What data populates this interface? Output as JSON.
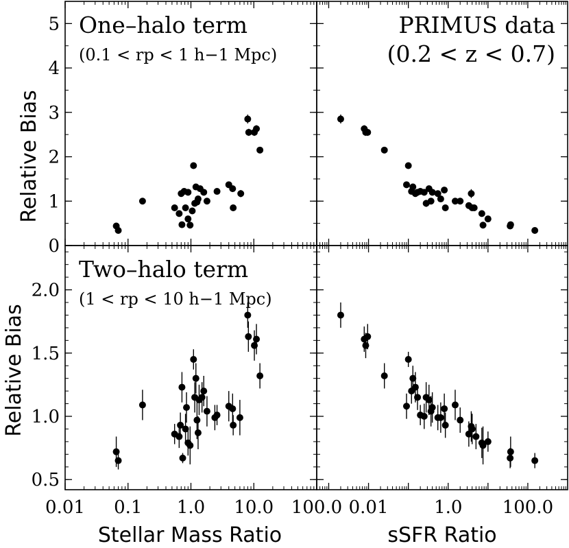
{
  "chart_data": [
    {
      "id": "one_halo_mass",
      "type": "scatter",
      "panel_text": "One–halo term",
      "panel_subtext": "(0.1 < rp < 1 h−1 Mpc)",
      "xlabel": "",
      "ylabel": "Relative Bias",
      "xscale": "log",
      "xlim": [
        0.01,
        100
      ],
      "ylim": [
        0,
        5.5
      ],
      "yticks": [
        0,
        1,
        2,
        3,
        4,
        5
      ],
      "ytick_labels": [
        "0",
        "1",
        "2",
        "3",
        "4",
        "5"
      ],
      "points": [
        {
          "x": 0.065,
          "y": 0.44,
          "err": 0.06
        },
        {
          "x": 0.07,
          "y": 0.34,
          "err": 0.06
        },
        {
          "x": 0.17,
          "y": 1.0,
          "err": 0.06
        },
        {
          "x": 0.55,
          "y": 0.85,
          "err": 0.06
        },
        {
          "x": 0.65,
          "y": 0.72,
          "err": 0.06
        },
        {
          "x": 0.7,
          "y": 1.17,
          "err": 0.06
        },
        {
          "x": 0.72,
          "y": 0.47,
          "err": 0.06
        },
        {
          "x": 0.78,
          "y": 1.22,
          "err": 0.06
        },
        {
          "x": 0.82,
          "y": 0.85,
          "err": 0.06
        },
        {
          "x": 0.9,
          "y": 1.2,
          "err": 0.06
        },
        {
          "x": 0.9,
          "y": 0.6,
          "err": 0.06
        },
        {
          "x": 0.97,
          "y": 0.46,
          "err": 0.06
        },
        {
          "x": 1.05,
          "y": 0.78,
          "err": 0.06
        },
        {
          "x": 1.1,
          "y": 1.8,
          "err": 0.06
        },
        {
          "x": 1.15,
          "y": 0.95,
          "err": 0.06
        },
        {
          "x": 1.2,
          "y": 1.32,
          "err": 0.06
        },
        {
          "x": 1.25,
          "y": 0.98,
          "err": 0.06
        },
        {
          "x": 1.3,
          "y": 1.05,
          "err": 0.06
        },
        {
          "x": 1.4,
          "y": 1.28,
          "err": 0.06
        },
        {
          "x": 1.6,
          "y": 1.2,
          "err": 0.06
        },
        {
          "x": 1.8,
          "y": 1.0,
          "err": 0.06
        },
        {
          "x": 2.6,
          "y": 1.22,
          "err": 0.06
        },
        {
          "x": 4.0,
          "y": 1.37,
          "err": 0.06
        },
        {
          "x": 4.6,
          "y": 1.28,
          "err": 0.06
        },
        {
          "x": 4.7,
          "y": 0.85,
          "err": 0.06
        },
        {
          "x": 6.2,
          "y": 1.17,
          "err": 0.08
        },
        {
          "x": 8.0,
          "y": 2.85,
          "err": 0.1
        },
        {
          "x": 8.3,
          "y": 2.55,
          "err": 0.08
        },
        {
          "x": 10.2,
          "y": 2.55,
          "err": 0.08
        },
        {
          "x": 11.0,
          "y": 2.63,
          "err": 0.08
        },
        {
          "x": 12.5,
          "y": 2.15,
          "err": 0.06
        }
      ]
    },
    {
      "id": "one_halo_ssfr",
      "type": "scatter",
      "panel_text": "PRIMUS data",
      "panel_subtext": "(0.2 < z < 0.7)",
      "xlabel": "",
      "ylabel": "",
      "xscale": "log",
      "xlim": [
        0.0005,
        1000
      ],
      "ylim": [
        0,
        5.5
      ],
      "points": [
        {
          "x": 0.002,
          "y": 2.85,
          "err": 0.1
        },
        {
          "x": 0.0078,
          "y": 2.63,
          "err": 0.08
        },
        {
          "x": 0.0085,
          "y": 2.55,
          "err": 0.08
        },
        {
          "x": 0.0095,
          "y": 2.55,
          "err": 0.08
        },
        {
          "x": 0.025,
          "y": 2.15,
          "err": 0.06
        },
        {
          "x": 0.09,
          "y": 1.37,
          "err": 0.06
        },
        {
          "x": 0.1,
          "y": 1.8,
          "err": 0.06
        },
        {
          "x": 0.12,
          "y": 1.22,
          "err": 0.06
        },
        {
          "x": 0.13,
          "y": 1.32,
          "err": 0.06
        },
        {
          "x": 0.15,
          "y": 1.17,
          "err": 0.06
        },
        {
          "x": 0.17,
          "y": 1.2,
          "err": 0.06
        },
        {
          "x": 0.2,
          "y": 1.22,
          "err": 0.06
        },
        {
          "x": 0.25,
          "y": 1.2,
          "err": 0.06
        },
        {
          "x": 0.28,
          "y": 0.95,
          "err": 0.08
        },
        {
          "x": 0.33,
          "y": 1.28,
          "err": 0.06
        },
        {
          "x": 0.37,
          "y": 1.0,
          "err": 0.06
        },
        {
          "x": 0.4,
          "y": 1.2,
          "err": 0.06
        },
        {
          "x": 0.55,
          "y": 1.17,
          "err": 0.06
        },
        {
          "x": 0.65,
          "y": 1.05,
          "err": 0.06
        },
        {
          "x": 0.8,
          "y": 1.25,
          "err": 0.06
        },
        {
          "x": 0.85,
          "y": 0.85,
          "err": 0.06
        },
        {
          "x": 1.5,
          "y": 1.0,
          "err": 0.06
        },
        {
          "x": 2.0,
          "y": 1.0,
          "err": 0.06
        },
        {
          "x": 3.3,
          "y": 0.9,
          "err": 0.06
        },
        {
          "x": 3.8,
          "y": 1.17,
          "err": 0.1
        },
        {
          "x": 4.0,
          "y": 0.85,
          "err": 0.06
        },
        {
          "x": 4.5,
          "y": 0.85,
          "err": 0.06
        },
        {
          "x": 7.0,
          "y": 0.72,
          "err": 0.06
        },
        {
          "x": 7.5,
          "y": 0.46,
          "err": 0.06
        },
        {
          "x": 10.0,
          "y": 0.6,
          "err": 0.06
        },
        {
          "x": 36.0,
          "y": 0.44,
          "err": 0.06
        },
        {
          "x": 37.0,
          "y": 0.47,
          "err": 0.06
        },
        {
          "x": 150.0,
          "y": 0.34,
          "err": 0.06
        }
      ]
    },
    {
      "id": "two_halo_mass",
      "type": "scatter",
      "panel_text": "Two–halo term",
      "panel_subtext": "(1 < rp < 10 h−1 Mpc)",
      "xlabel": "Stellar Mass Ratio",
      "ylabel": "Relative Bias",
      "xscale": "log",
      "xlim": [
        0.01,
        100
      ],
      "ylim": [
        0.42,
        2.35
      ],
      "xticks": [
        0.01,
        0.1,
        1,
        10,
        100
      ],
      "xtick_labels": [
        "0.01",
        "0.1",
        "1.0",
        "10.0",
        "100.0"
      ],
      "yticks": [
        0.5,
        1.0,
        1.5,
        2.0
      ],
      "ytick_labels": [
        "0.5",
        "1.0",
        "1.5",
        "2.0"
      ],
      "points": [
        {
          "x": 0.065,
          "y": 0.72,
          "err": 0.12
        },
        {
          "x": 0.07,
          "y": 0.65,
          "err": 0.07
        },
        {
          "x": 0.17,
          "y": 1.09,
          "err": 0.12
        },
        {
          "x": 0.55,
          "y": 0.86,
          "err": 0.08
        },
        {
          "x": 0.65,
          "y": 0.84,
          "err": 0.09
        },
        {
          "x": 0.68,
          "y": 0.93,
          "err": 0.1
        },
        {
          "x": 0.72,
          "y": 1.23,
          "err": 0.12
        },
        {
          "x": 0.74,
          "y": 0.67,
          "err": 0.04
        },
        {
          "x": 0.82,
          "y": 0.9,
          "err": 0.12
        },
        {
          "x": 0.85,
          "y": 1.07,
          "err": 0.12
        },
        {
          "x": 0.9,
          "y": 0.79,
          "err": 0.1
        },
        {
          "x": 0.97,
          "y": 0.77,
          "err": 0.15
        },
        {
          "x": 1.1,
          "y": 1.45,
          "err": 0.08
        },
        {
          "x": 1.15,
          "y": 1.15,
          "err": 0.12
        },
        {
          "x": 1.2,
          "y": 1.3,
          "err": 0.12
        },
        {
          "x": 1.25,
          "y": 0.97,
          "err": 0.15
        },
        {
          "x": 1.3,
          "y": 0.87,
          "err": 0.13
        },
        {
          "x": 1.35,
          "y": 1.13,
          "err": 0.12
        },
        {
          "x": 1.5,
          "y": 1.15,
          "err": 0.12
        },
        {
          "x": 1.6,
          "y": 1.2,
          "err": 0.12
        },
        {
          "x": 1.8,
          "y": 1.04,
          "err": 0.12
        },
        {
          "x": 2.4,
          "y": 0.99,
          "err": 0.1
        },
        {
          "x": 2.6,
          "y": 1.01,
          "err": 0.08
        },
        {
          "x": 4.0,
          "y": 1.08,
          "err": 0.12
        },
        {
          "x": 4.6,
          "y": 1.06,
          "err": 0.12
        },
        {
          "x": 4.7,
          "y": 0.93,
          "err": 0.08
        },
        {
          "x": 6.0,
          "y": 0.99,
          "err": 0.14
        },
        {
          "x": 8.0,
          "y": 1.8,
          "err": 0.1
        },
        {
          "x": 8.2,
          "y": 1.63,
          "err": 0.12
        },
        {
          "x": 10.2,
          "y": 1.56,
          "err": 0.12
        },
        {
          "x": 11.0,
          "y": 1.61,
          "err": 0.12
        },
        {
          "x": 12.5,
          "y": 1.32,
          "err": 0.1
        }
      ]
    },
    {
      "id": "two_halo_ssfr",
      "type": "scatter",
      "panel_text": "",
      "panel_subtext": "",
      "xlabel": "sSFR Ratio",
      "ylabel": "",
      "xscale": "log",
      "xlim": [
        0.0005,
        1000
      ],
      "ylim": [
        0.42,
        2.35
      ],
      "xticks": [
        0.01,
        1,
        100
      ],
      "xtick_labels": [
        "0.01",
        "1.0",
        "100.0"
      ],
      "points": [
        {
          "x": 0.002,
          "y": 1.8,
          "err": 0.1
        },
        {
          "x": 0.0078,
          "y": 1.61,
          "err": 0.1
        },
        {
          "x": 0.0085,
          "y": 1.56,
          "err": 0.1
        },
        {
          "x": 0.0095,
          "y": 1.63,
          "err": 0.1
        },
        {
          "x": 0.025,
          "y": 1.32,
          "err": 0.1
        },
        {
          "x": 0.09,
          "y": 1.08,
          "err": 0.1
        },
        {
          "x": 0.1,
          "y": 1.45,
          "err": 0.06
        },
        {
          "x": 0.12,
          "y": 1.2,
          "err": 0.1
        },
        {
          "x": 0.13,
          "y": 1.3,
          "err": 0.1
        },
        {
          "x": 0.15,
          "y": 1.23,
          "err": 0.12
        },
        {
          "x": 0.17,
          "y": 1.15,
          "err": 0.1
        },
        {
          "x": 0.2,
          "y": 1.01,
          "err": 0.08
        },
        {
          "x": 0.25,
          "y": 1.0,
          "err": 0.1
        },
        {
          "x": 0.28,
          "y": 1.15,
          "err": 0.12
        },
        {
          "x": 0.33,
          "y": 1.13,
          "err": 0.12
        },
        {
          "x": 0.37,
          "y": 1.04,
          "err": 0.12
        },
        {
          "x": 0.4,
          "y": 1.07,
          "err": 0.12
        },
        {
          "x": 0.55,
          "y": 0.99,
          "err": 0.1
        },
        {
          "x": 0.65,
          "y": 0.99,
          "err": 0.12
        },
        {
          "x": 0.8,
          "y": 1.06,
          "err": 0.12
        },
        {
          "x": 0.85,
          "y": 0.93,
          "err": 0.1
        },
        {
          "x": 1.5,
          "y": 1.09,
          "err": 0.12
        },
        {
          "x": 2.0,
          "y": 0.97,
          "err": 0.1
        },
        {
          "x": 3.3,
          "y": 0.86,
          "err": 0.1
        },
        {
          "x": 3.8,
          "y": 0.92,
          "err": 0.12
        },
        {
          "x": 4.0,
          "y": 0.9,
          "err": 0.12
        },
        {
          "x": 5.0,
          "y": 0.84,
          "err": 0.1
        },
        {
          "x": 7.0,
          "y": 0.79,
          "err": 0.12
        },
        {
          "x": 7.5,
          "y": 0.77,
          "err": 0.15
        },
        {
          "x": 10.0,
          "y": 0.8,
          "err": 0.08
        },
        {
          "x": 36.0,
          "y": 0.67,
          "err": 0.08
        },
        {
          "x": 37.0,
          "y": 0.72,
          "err": 0.12
        },
        {
          "x": 150.0,
          "y": 0.65,
          "err": 0.06
        }
      ]
    }
  ]
}
